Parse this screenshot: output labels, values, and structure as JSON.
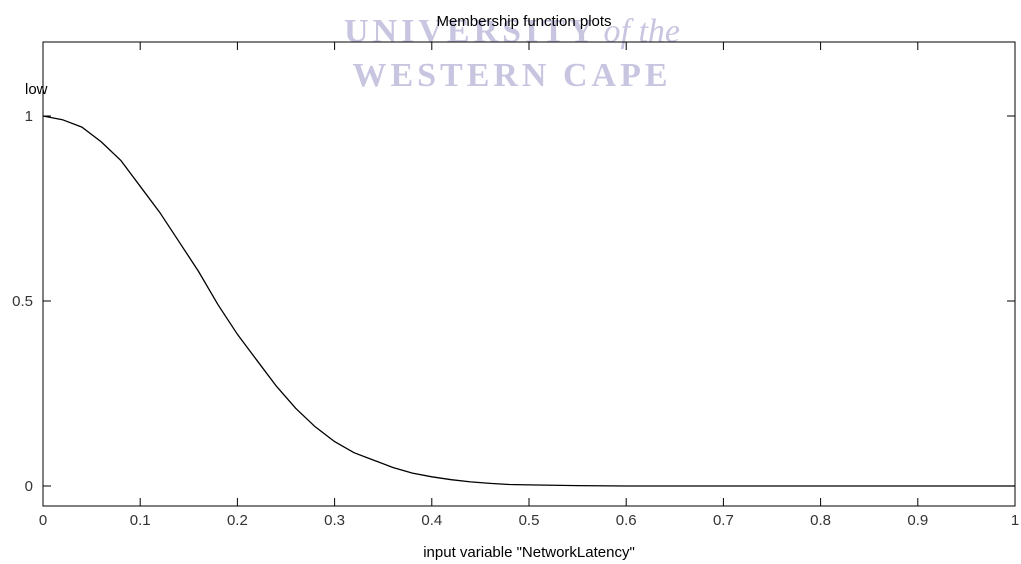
{
  "watermark": {
    "line1": "UNIVERSITY",
    "line1_italic": "of the",
    "line2": "WESTERN CAPE",
    "color": "#9a96c8"
  },
  "chart_data": {
    "type": "line",
    "title": "Membership function plots",
    "xlabel": "input variable \"NetworkLatency\"",
    "ylabel": "",
    "xlim": [
      0,
      1
    ],
    "ylim": [
      -0.05,
      1.2
    ],
    "x_ticks": [
      0,
      0.1,
      0.2,
      0.3,
      0.4,
      0.5,
      0.6,
      0.7,
      0.8,
      0.9,
      1
    ],
    "x_tick_labels": [
      "0",
      "0.1",
      "0.2",
      "0.3",
      "0.4",
      "0.5",
      "0.6",
      "0.7",
      "0.8",
      "0.9",
      "1"
    ],
    "y_ticks": [
      0,
      0.5,
      1
    ],
    "y_tick_labels": [
      "0",
      "0.5",
      "1"
    ],
    "grid": false,
    "series": [
      {
        "label": "low",
        "color": "#000000",
        "x": [
          0,
          0.02,
          0.04,
          0.06,
          0.08,
          0.1,
          0.12,
          0.14,
          0.16,
          0.18,
          0.2,
          0.22,
          0.24,
          0.26,
          0.28,
          0.3,
          0.32,
          0.34,
          0.36,
          0.38,
          0.4,
          0.42,
          0.44,
          0.46,
          0.48,
          0.5,
          0.55,
          0.6,
          0.65,
          0.7,
          0.8,
          0.9,
          1.0
        ],
        "y": [
          1.0,
          0.99,
          0.97,
          0.93,
          0.88,
          0.81,
          0.74,
          0.66,
          0.58,
          0.49,
          0.41,
          0.34,
          0.27,
          0.21,
          0.16,
          0.12,
          0.09,
          0.07,
          0.05,
          0.035,
          0.025,
          0.017,
          0.011,
          0.007,
          0.004,
          0.003,
          0.001,
          0.0,
          0.0,
          0.0,
          0.0,
          0.0,
          0.0
        ]
      }
    ]
  }
}
